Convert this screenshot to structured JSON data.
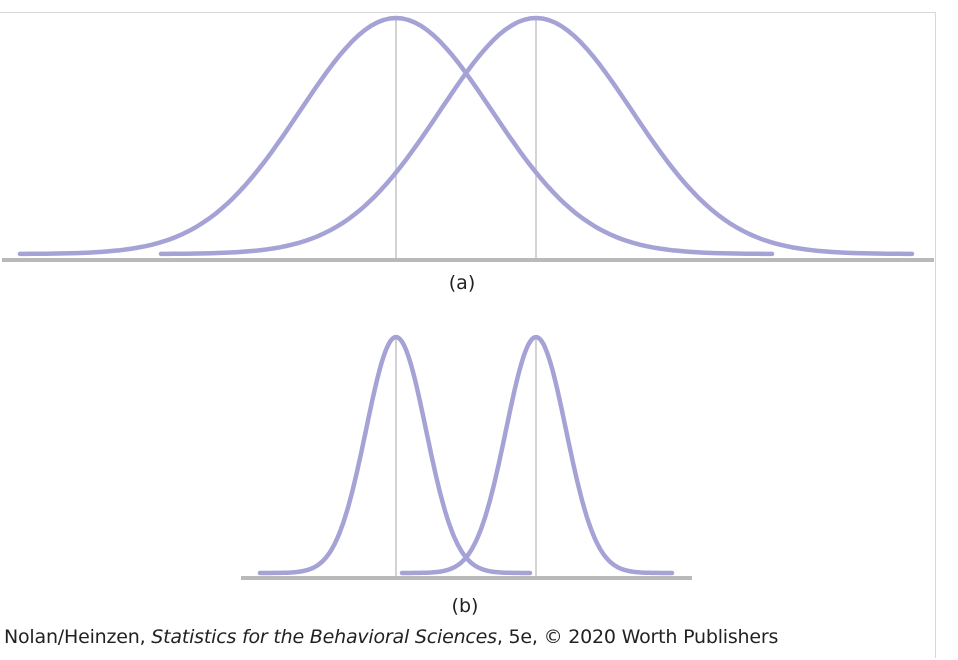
{
  "panels": [
    {
      "label": "(a)"
    },
    {
      "label": "(b)"
    }
  ],
  "credit": {
    "authors": "Nolan/Heinzen, ",
    "book_title": "Statistics for the Behavioral Sciences",
    "rest": ", 5e, © 2020 Worth Publishers"
  },
  "colors": {
    "curve": "#a5a2d6",
    "mean_line": "#c8c8c8",
    "baseline": "#b9b9b9"
  }
}
